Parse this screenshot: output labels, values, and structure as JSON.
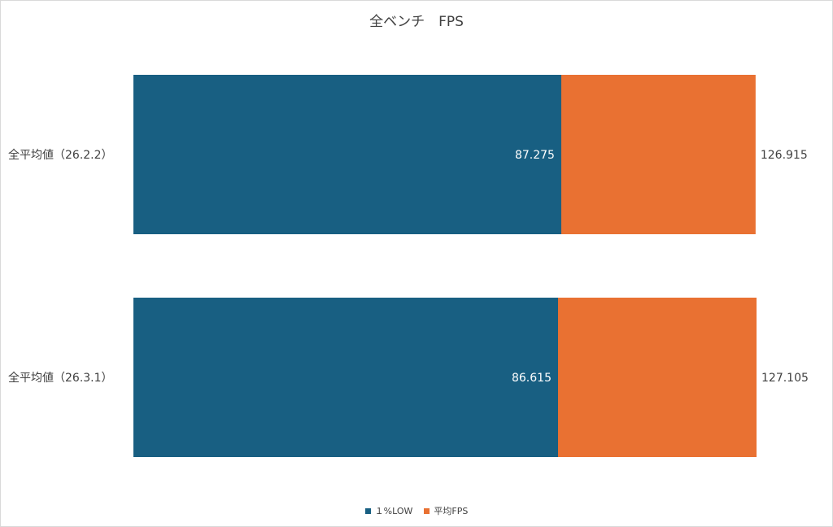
{
  "chart_data": {
    "type": "bar",
    "orientation": "horizontal",
    "title": "全ベンチ　FPS",
    "categories": [
      "全平均値（26.2.2）",
      "全平均値（26.3.1）"
    ],
    "series": [
      {
        "name": "１%LOW",
        "values": [
          87.275,
          86.615
        ],
        "color": "#185f82",
        "label_color": "#ffffff"
      },
      {
        "name": "平均FPS",
        "values": [
          126.915,
          127.105
        ],
        "color": "#e97132",
        "label_color": "#404040"
      }
    ],
    "bar_mode": "overlay",
    "xlim": [
      0,
      140
    ],
    "grid": false,
    "xaxis_visible": false,
    "legend_position": "bottom"
  }
}
